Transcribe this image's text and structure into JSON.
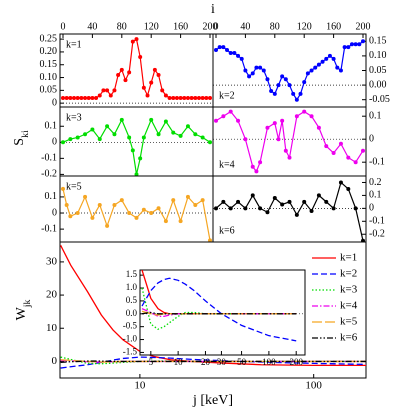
{
  "chart_data": [
    {
      "type": "panels",
      "xlabel": "i",
      "xlim": [
        0,
        200
      ],
      "xticks": [
        0,
        40,
        80,
        120,
        160,
        200
      ],
      "ylabel": {
        "main": "S",
        "sub": "ki"
      },
      "panels": [
        {
          "label": "k=1",
          "label_corner": "top",
          "color": "#ff0000",
          "x": [
            0,
            5,
            10,
            15,
            20,
            25,
            30,
            35,
            40,
            45,
            50,
            55,
            60,
            65,
            70,
            75,
            80,
            85,
            90,
            95,
            100,
            105,
            110,
            115,
            120,
            125,
            130,
            135,
            140,
            145,
            150,
            155,
            160,
            165,
            170,
            175,
            180,
            185,
            190,
            195,
            200
          ],
          "values": [
            0.02,
            0.02,
            0.02,
            0.02,
            0.02,
            0.02,
            0.02,
            0.02,
            0.02,
            0.02,
            0.03,
            0.05,
            0.05,
            0.03,
            0.05,
            0.11,
            0.13,
            0.09,
            0.12,
            0.24,
            0.25,
            0.18,
            0.06,
            0.03,
            0.08,
            0.13,
            0.11,
            0.05,
            0.03,
            0.02,
            0.02,
            0.02,
            0.02,
            0.02,
            0.02,
            0.02,
            0.02,
            0.02,
            0.02,
            0.02,
            0.02
          ],
          "ylim": [
            -0.015,
            0.27
          ],
          "yticks": [
            0,
            {
              "value": 0.05,
              "label": "0.05"
            },
            {
              "value": 0.1,
              "label": "0.10"
            },
            {
              "value": 0.15,
              "label": "0.15"
            },
            {
              "value": 0.2,
              "label": "0.20"
            },
            {
              "value": 0.25,
              "label": "0.25"
            }
          ]
        },
        {
          "label": "k=2",
          "label_corner": "bottom",
          "color": "#0000ff",
          "x": [
            0,
            5,
            10,
            15,
            20,
            25,
            30,
            35,
            40,
            45,
            50,
            55,
            60,
            65,
            70,
            75,
            80,
            85,
            90,
            95,
            100,
            105,
            110,
            115,
            120,
            125,
            130,
            135,
            140,
            145,
            150,
            155,
            160,
            165,
            170,
            175,
            180,
            185,
            190,
            195,
            200
          ],
          "values": [
            0.12,
            0.13,
            0.13,
            0.12,
            0.11,
            0.11,
            0.1,
            0.09,
            0.05,
            0.03,
            0.04,
            0.06,
            0.06,
            0.05,
            0.02,
            -0.02,
            -0.03,
            0.0,
            0.03,
            0.02,
            0.0,
            -0.03,
            -0.05,
            -0.03,
            0.01,
            0.04,
            0.05,
            0.06,
            0.07,
            0.08,
            0.09,
            0.1,
            0.09,
            0.06,
            0.05,
            0.13,
            0.13,
            0.14,
            0.14,
            0.14,
            0.15
          ],
          "ylim": [
            -0.075,
            0.175
          ],
          "yticks": [
            -0.05,
            {
              "value": 0,
              "label": "0.00"
            },
            0.05,
            {
              "value": 0.1,
              "label": "0.10"
            },
            0.15
          ]
        },
        {
          "label": "k=3",
          "label_corner": "top",
          "color": "#00dd00",
          "x": [
            0,
            10,
            20,
            30,
            40,
            50,
            60,
            70,
            80,
            90,
            95,
            100,
            105,
            110,
            120,
            130,
            140,
            150,
            160,
            170,
            180,
            190,
            200
          ],
          "values": [
            0.0,
            0.02,
            0.03,
            0.05,
            0.08,
            0.02,
            0.1,
            0.05,
            0.14,
            0.03,
            -0.05,
            -0.2,
            -0.1,
            0.03,
            0.14,
            0.05,
            0.13,
            0.06,
            0.04,
            0.1,
            0.05,
            0.03,
            0.0
          ],
          "ylim": [
            -0.21,
            0.22
          ],
          "yticks": [
            -0.2,
            -0.1,
            0,
            0.1
          ]
        },
        {
          "label": "k=4",
          "label_corner": "bottom",
          "color": "#ee00ee",
          "x": [
            0,
            10,
            20,
            30,
            40,
            50,
            55,
            60,
            70,
            80,
            85,
            90,
            95,
            100,
            110,
            120,
            130,
            140,
            150,
            160,
            170,
            180,
            190,
            200
          ],
          "values": [
            0.08,
            0.1,
            0.12,
            0.08,
            0.0,
            -0.12,
            -0.14,
            -0.1,
            0.05,
            0.07,
            0.0,
            0.08,
            -0.05,
            -0.08,
            0.1,
            0.12,
            0.1,
            0.05,
            -0.03,
            -0.06,
            -0.02,
            -0.08,
            -0.1,
            -0.05
          ],
          "ylim": [
            -0.16,
            0.14
          ],
          "yticks": [
            -0.1,
            0,
            0.1
          ]
        },
        {
          "label": "k=5",
          "label_corner": "top",
          "color": "#f5a623",
          "x": [
            0,
            5,
            10,
            20,
            30,
            40,
            50,
            60,
            70,
            80,
            90,
            100,
            110,
            120,
            130,
            140,
            150,
            160,
            170,
            180,
            190,
            200
          ],
          "values": [
            0.15,
            0.05,
            -0.02,
            0.0,
            0.1,
            -0.03,
            0.05,
            -0.08,
            0.05,
            0.08,
            0.0,
            -0.03,
            0.02,
            0.0,
            0.03,
            -0.05,
            0.08,
            -0.05,
            0.1,
            0.05,
            0.08,
            -0.17
          ],
          "ylim": [
            -0.18,
            0.23
          ],
          "yticks": [
            -0.1,
            0,
            0.1
          ]
        },
        {
          "label": "k=6",
          "label_corner": "bottom",
          "color": "#000000",
          "x": [
            0,
            10,
            20,
            30,
            40,
            50,
            60,
            70,
            80,
            90,
            100,
            110,
            120,
            130,
            140,
            150,
            160,
            170,
            180,
            190,
            200
          ],
          "values": [
            0.0,
            0.05,
            0.0,
            0.05,
            0.0,
            0.1,
            0.0,
            -0.03,
            0.08,
            0.03,
            0.05,
            -0.05,
            0.05,
            -0.02,
            0.1,
            0.05,
            0.0,
            0.2,
            0.15,
            0.0,
            -0.25
          ],
          "ylim": [
            -0.26,
            0.25
          ],
          "yticks": [
            -0.2,
            -0.1,
            0,
            0.1,
            0.2
          ]
        }
      ]
    },
    {
      "type": "line",
      "log_x": true,
      "xlabel": "j [keV]",
      "ylabel": {
        "main": "W",
        "sub": "jk"
      },
      "xlim": [
        3.47,
        200
      ],
      "xticks": [
        10,
        100
      ],
      "ylim": [
        -5,
        36
      ],
      "yticks": [
        0,
        10,
        20,
        30
      ],
      "legend": "right",
      "x": [
        3.5,
        4,
        5,
        6,
        7,
        8,
        10,
        12,
        15,
        20,
        30,
        50,
        100,
        200
      ],
      "series": [
        {
          "name": "k=1",
          "color": "#ff0000",
          "style": "solid",
          "values": [
            35,
            29,
            21,
            14,
            9.5,
            6.5,
            3,
            1.5,
            0.5,
            0,
            -0.5,
            -1,
            -1.2,
            -1.2
          ]
        },
        {
          "name": "k=2",
          "color": "#0000ff",
          "style": "dashed",
          "values": [
            -2,
            -1.6,
            -1,
            -0.3,
            0.4,
            0.9,
            1.3,
            1.2,
            1.0,
            0.6,
            0.2,
            -0.2,
            -0.6,
            -0.9
          ]
        },
        {
          "name": "k=3",
          "color": "#00dd00",
          "style": "dotted",
          "values": [
            1.3,
            0.6,
            -0.6,
            -0.7,
            -0.5,
            -0.3,
            0,
            0.1,
            0.1,
            0,
            0,
            0,
            0,
            0
          ]
        },
        {
          "name": "k=4",
          "color": "#ee00ee",
          "style": "dashdot",
          "values": [
            0.3,
            0.2,
            -0.1,
            -0.2,
            -0.1,
            0,
            0,
            0,
            0,
            0,
            0,
            0,
            0,
            0
          ]
        },
        {
          "name": "k=5",
          "color": "#f5a623",
          "style": "longdash",
          "values": [
            0.5,
            0.3,
            0,
            -0.2,
            -0.1,
            0,
            0,
            0,
            0,
            0,
            0,
            0,
            0,
            0
          ]
        },
        {
          "name": "k=6",
          "color": "#000000",
          "style": "dashdotdot",
          "values": [
            -0.3,
            -0.1,
            0.1,
            0.1,
            0,
            0,
            0,
            0,
            0,
            0,
            0,
            0,
            0,
            0
          ]
        }
      ]
    },
    {
      "type": "line",
      "log_x": true,
      "xlim": [
        3.8,
        250
      ],
      "xticks": [
        5,
        10,
        20,
        30,
        50,
        100,
        200
      ],
      "ylim": [
        -1.6,
        1.7
      ],
      "yticks": [
        -1.5,
        {
          "value": -1,
          "label": "-1.0"
        },
        -0.5,
        {
          "value": 0,
          "label": "0.0"
        },
        0.5,
        {
          "value": 1,
          "label": "1.0"
        },
        1.5
      ],
      "x": [
        4,
        5,
        6,
        7,
        8,
        10,
        12,
        15,
        20,
        30,
        50,
        100,
        200
      ],
      "series": [
        {
          "color": "#ff0000",
          "style": "solid",
          "values": [
            1.7,
            0.6,
            0.2,
            0.05,
            0,
            0,
            0,
            0,
            0,
            0,
            0,
            0,
            0
          ]
        },
        {
          "color": "#0000ff",
          "style": "dashed",
          "values": [
            0.3,
            0.9,
            1.2,
            1.33,
            1.38,
            1.3,
            1.15,
            0.9,
            0.5,
            0,
            -0.45,
            -0.85,
            -1.05
          ]
        },
        {
          "color": "#00dd00",
          "style": "dotted",
          "values": [
            1.0,
            -0.4,
            -0.6,
            -0.5,
            -0.35,
            -0.1,
            0.05,
            0.05,
            0,
            0,
            0,
            0,
            0
          ]
        },
        {
          "color": "#ee00ee",
          "style": "dashdot",
          "values": [
            0.2,
            0.05,
            -0.1,
            -0.1,
            -0.05,
            0,
            0,
            0,
            0,
            0,
            0,
            0,
            0
          ]
        },
        {
          "color": "#f5a623",
          "style": "longdash",
          "values": [
            0.1,
            0,
            -0.05,
            0,
            0,
            0,
            0,
            0,
            0,
            0,
            0,
            0,
            0
          ]
        },
        {
          "color": "#000000",
          "style": "dashdotdot",
          "values": [
            0,
            0.05,
            0,
            0,
            0,
            0,
            0,
            0,
            0,
            0,
            0,
            0,
            0
          ]
        }
      ]
    }
  ]
}
